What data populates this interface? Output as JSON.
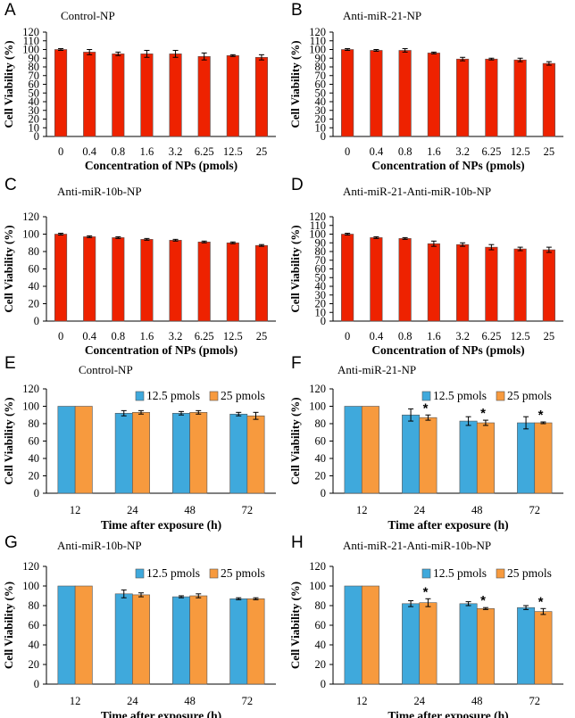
{
  "chart_data": [
    {
      "panel": "A",
      "type": "bar",
      "title": "Control-NP",
      "categories": [
        "0",
        "0.4",
        "0.8",
        "1.6",
        "3.2",
        "6.25",
        "12.5",
        "25"
      ],
      "series": [
        {
          "name": "Control-NP",
          "values": [
            100,
            97,
            95,
            95,
            95,
            92,
            93,
            91
          ],
          "errors": [
            1,
            3,
            2,
            4,
            4,
            4,
            1,
            3
          ]
        }
      ],
      "xlabel": "Concentration of NPs (pmols)",
      "ylabel": "Cell Viability (%)",
      "ylim": [
        0,
        120
      ],
      "yticks": [
        0,
        10,
        20,
        30,
        40,
        50,
        60,
        70,
        80,
        90,
        100,
        110,
        120
      ],
      "colors": [
        "#ee2200"
      ],
      "legend": false
    },
    {
      "panel": "B",
      "type": "bar",
      "title": "Anti-miR-21-NP",
      "categories": [
        "0",
        "0.4",
        "0.8",
        "1.6",
        "3.2",
        "6.25",
        "12.5",
        "25"
      ],
      "series": [
        {
          "name": "Anti-miR-21-NP",
          "values": [
            100,
            99,
            99,
            96,
            89,
            89,
            88,
            84
          ],
          "errors": [
            1,
            1,
            2,
            1,
            2,
            1,
            2,
            2
          ]
        }
      ],
      "xlabel": "Concentration of NPs (pmols)",
      "ylabel": "Cell Viability (%)",
      "ylim": [
        0,
        120
      ],
      "yticks": [
        0,
        10,
        20,
        30,
        40,
        50,
        60,
        70,
        80,
        90,
        100,
        110,
        120
      ],
      "colors": [
        "#ee2200"
      ],
      "legend": false
    },
    {
      "panel": "C",
      "type": "bar",
      "title": "Anti-miR-10b-NP",
      "categories": [
        "0",
        "0.4",
        "0.8",
        "1.6",
        "3.2",
        "6.25",
        "12.5",
        "25"
      ],
      "series": [
        {
          "name": "Anti-miR-10b-NP",
          "values": [
            100,
            97,
            96,
            94,
            93,
            91,
            90,
            87
          ],
          "errors": [
            1,
            1,
            1,
            1,
            1,
            1,
            1,
            1
          ]
        }
      ],
      "xlabel": "Concentration of NPs (pmols)",
      "ylabel": "Cell Viability (%)",
      "ylim": [
        0,
        120
      ],
      "yticks": [
        0,
        20,
        40,
        60,
        80,
        100,
        120
      ],
      "colors": [
        "#ee2200"
      ],
      "legend": false
    },
    {
      "panel": "D",
      "type": "bar",
      "title": "Anti-miR-21-Anti-miR-10b-NP",
      "categories": [
        "0",
        "0.4",
        "0.8",
        "1.6",
        "3.2",
        "6.25",
        "12.5",
        "25"
      ],
      "series": [
        {
          "name": "Anti-miR-21-Anti-miR-10b-NP",
          "values": [
            100,
            96,
            95,
            89,
            88,
            85,
            83,
            82
          ],
          "errors": [
            1,
            1,
            1,
            3,
            2,
            3,
            2,
            3
          ]
        }
      ],
      "xlabel": "Concentration of NPs (pmols)",
      "ylabel": "Cell Viability (%)",
      "ylim": [
        0,
        120
      ],
      "yticks": [
        0,
        10,
        20,
        30,
        40,
        50,
        60,
        70,
        80,
        90,
        100,
        110,
        120
      ],
      "colors": [
        "#ee2200"
      ],
      "legend": false
    },
    {
      "panel": "E",
      "type": "bar",
      "title": "Control-NP",
      "categories": [
        "12",
        "24",
        "48",
        "72"
      ],
      "series": [
        {
          "name": "12.5 pmols",
          "values": [
            100,
            92,
            92,
            91
          ],
          "errors": [
            0,
            3,
            2,
            2
          ]
        },
        {
          "name": "25 pmols",
          "values": [
            100,
            93,
            93,
            89
          ],
          "errors": [
            0,
            2,
            2,
            4
          ]
        }
      ],
      "stars": [
        0,
        0,
        0,
        0
      ],
      "xlabel": "Time after exposure (h)",
      "ylabel": "Cell Viability (%)",
      "ylim": [
        0,
        120
      ],
      "yticks": [
        0,
        20,
        40,
        60,
        80,
        100,
        120
      ],
      "colors": [
        "#3fa9dc",
        "#f79a3e"
      ],
      "legend": true
    },
    {
      "panel": "F",
      "type": "bar",
      "title": "Anti-miR-21-NP",
      "categories": [
        "12",
        "24",
        "48",
        "72"
      ],
      "series": [
        {
          "name": "12.5 pmols",
          "values": [
            100,
            90,
            83,
            81
          ],
          "errors": [
            0,
            7,
            5,
            7
          ]
        },
        {
          "name": "25 pmols",
          "values": [
            100,
            87,
            81,
            81
          ],
          "errors": [
            0,
            3,
            3,
            1
          ]
        }
      ],
      "stars": [
        0,
        1,
        1,
        1
      ],
      "star_label": "*",
      "xlabel": "Time after exposure (h)",
      "ylabel": "Cell Viability (%)",
      "ylim": [
        0,
        120
      ],
      "yticks": [
        0,
        20,
        40,
        60,
        80,
        100,
        120
      ],
      "colors": [
        "#3fa9dc",
        "#f79a3e"
      ],
      "legend": true
    },
    {
      "panel": "G",
      "type": "bar",
      "title": "Anti-miR-10b-NP",
      "categories": [
        "12",
        "24",
        "48",
        "72"
      ],
      "series": [
        {
          "name": "12.5 pmols",
          "values": [
            100,
            92,
            89,
            87
          ],
          "errors": [
            0,
            4,
            1,
            1
          ]
        },
        {
          "name": "25 pmols",
          "values": [
            100,
            91,
            90,
            87
          ],
          "errors": [
            0,
            2,
            2,
            1
          ]
        }
      ],
      "stars": [
        0,
        0,
        0,
        0
      ],
      "xlabel": "Time after exposure (h)",
      "ylabel": "Cell Viability (%)",
      "ylim": [
        0,
        120
      ],
      "yticks": [
        0,
        20,
        40,
        60,
        80,
        100,
        120
      ],
      "colors": [
        "#3fa9dc",
        "#f79a3e"
      ],
      "legend": true
    },
    {
      "panel": "H",
      "type": "bar",
      "title": "Anti-miR-21-Anti-miR-10b-NP",
      "categories": [
        "12",
        "24",
        "48",
        "72"
      ],
      "series": [
        {
          "name": "12.5 pmols",
          "values": [
            100,
            82,
            82,
            78
          ],
          "errors": [
            0,
            3,
            2,
            2
          ]
        },
        {
          "name": "25 pmols",
          "values": [
            100,
            83,
            77,
            74
          ],
          "errors": [
            0,
            4,
            1,
            3
          ]
        }
      ],
      "stars": [
        0,
        1,
        1,
        1
      ],
      "star_label": "*",
      "xlabel": "Time after exposure (h)",
      "ylabel": "Cell Viability (%)",
      "ylim": [
        0,
        120
      ],
      "yticks": [
        0,
        20,
        40,
        60,
        80,
        100,
        120
      ],
      "colors": [
        "#3fa9dc",
        "#f79a3e"
      ],
      "legend": true
    }
  ]
}
